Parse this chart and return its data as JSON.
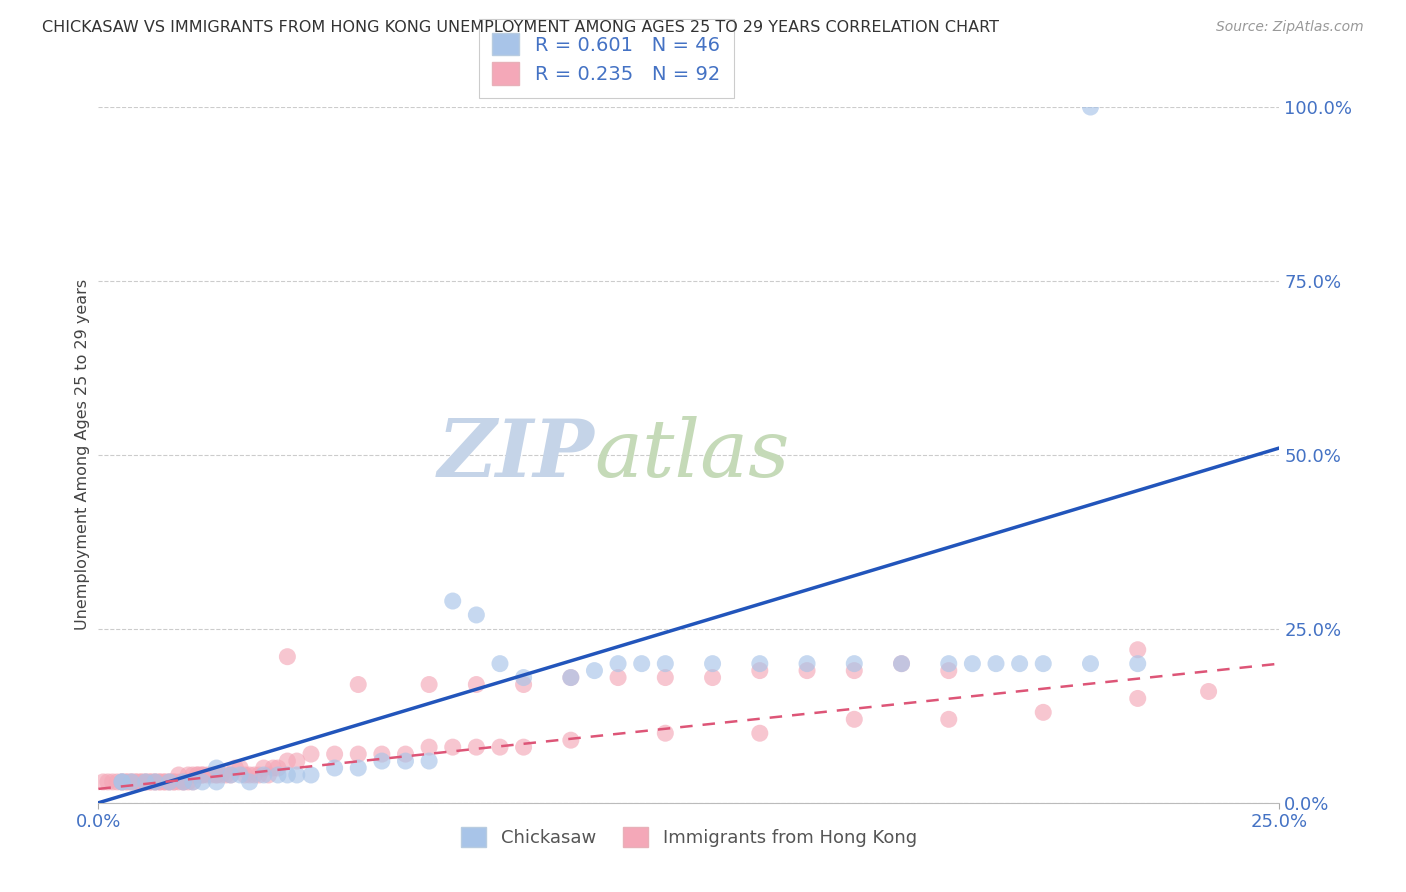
{
  "title": "CHICKASAW VS IMMIGRANTS FROM HONG KONG UNEMPLOYMENT AMONG AGES 25 TO 29 YEARS CORRELATION CHART",
  "source": "Source: ZipAtlas.com",
  "ylabel": "Unemployment Among Ages 25 to 29 years",
  "xlim": [
    0.0,
    0.25
  ],
  "ylim": [
    0.0,
    1.0
  ],
  "legend_r1": "R = 0.601",
  "legend_n1": "N = 46",
  "legend_r2": "R = 0.235",
  "legend_n2": "N = 92",
  "color_chickasaw": "#a8c4e8",
  "color_hk": "#f4a8b8",
  "color_blue_line": "#2255bb",
  "color_pink_line": "#dd5577",
  "color_title": "#333333",
  "color_axis_blue": "#4472c4",
  "watermark_zip_color": "#c0cfe8",
  "watermark_atlas_color": "#c0d8b0",
  "grid_color": "#cccccc",
  "background_color": "#ffffff",
  "legend_label1": "Chickasaw",
  "legend_label2": "Immigrants from Hong Kong",
  "blue_line_x": [
    0.0,
    0.25
  ],
  "blue_line_y": [
    0.0,
    0.51
  ],
  "pink_line_x": [
    0.0,
    0.25
  ],
  "pink_line_y": [
    0.02,
    0.2
  ],
  "chickasaw_x": [
    0.005,
    0.005,
    0.007,
    0.01,
    0.012,
    0.015,
    0.018,
    0.02,
    0.022,
    0.025,
    0.025,
    0.028,
    0.03,
    0.032,
    0.035,
    0.038,
    0.04,
    0.042,
    0.045,
    0.05,
    0.055,
    0.06,
    0.065,
    0.07,
    0.075,
    0.08,
    0.085,
    0.09,
    0.1,
    0.105,
    0.11,
    0.115,
    0.12,
    0.13,
    0.14,
    0.15,
    0.16,
    0.17,
    0.18,
    0.19,
    0.2,
    0.21,
    0.22,
    0.185,
    0.195,
    0.21
  ],
  "chickasaw_y": [
    0.03,
    0.03,
    0.03,
    0.03,
    0.03,
    0.03,
    0.03,
    0.03,
    0.03,
    0.03,
    0.05,
    0.04,
    0.04,
    0.03,
    0.04,
    0.04,
    0.04,
    0.04,
    0.04,
    0.05,
    0.05,
    0.06,
    0.06,
    0.06,
    0.29,
    0.27,
    0.2,
    0.18,
    0.18,
    0.19,
    0.2,
    0.2,
    0.2,
    0.2,
    0.2,
    0.2,
    0.2,
    0.2,
    0.2,
    0.2,
    0.2,
    0.2,
    0.2,
    0.2,
    0.2,
    1.0
  ],
  "hk_x": [
    0.001,
    0.002,
    0.003,
    0.004,
    0.005,
    0.005,
    0.006,
    0.006,
    0.007,
    0.007,
    0.008,
    0.008,
    0.009,
    0.009,
    0.01,
    0.01,
    0.011,
    0.011,
    0.012,
    0.012,
    0.013,
    0.013,
    0.014,
    0.014,
    0.015,
    0.015,
    0.016,
    0.016,
    0.017,
    0.017,
    0.018,
    0.018,
    0.019,
    0.019,
    0.02,
    0.02,
    0.021,
    0.021,
    0.022,
    0.022,
    0.023,
    0.024,
    0.025,
    0.025,
    0.026,
    0.027,
    0.028,
    0.029,
    0.03,
    0.031,
    0.032,
    0.033,
    0.034,
    0.035,
    0.036,
    0.037,
    0.038,
    0.04,
    0.042,
    0.045,
    0.05,
    0.055,
    0.06,
    0.065,
    0.07,
    0.075,
    0.08,
    0.085,
    0.09,
    0.1,
    0.12,
    0.14,
    0.16,
    0.18,
    0.2,
    0.22,
    0.235,
    0.04,
    0.055,
    0.07,
    0.08,
    0.09,
    0.1,
    0.11,
    0.12,
    0.13,
    0.14,
    0.15,
    0.16,
    0.17,
    0.18,
    0.22
  ],
  "hk_y": [
    0.03,
    0.03,
    0.03,
    0.03,
    0.03,
    0.03,
    0.03,
    0.03,
    0.03,
    0.03,
    0.03,
    0.03,
    0.03,
    0.03,
    0.03,
    0.03,
    0.03,
    0.03,
    0.03,
    0.03,
    0.03,
    0.03,
    0.03,
    0.03,
    0.03,
    0.03,
    0.03,
    0.03,
    0.03,
    0.04,
    0.03,
    0.03,
    0.04,
    0.03,
    0.04,
    0.03,
    0.04,
    0.04,
    0.04,
    0.04,
    0.04,
    0.04,
    0.04,
    0.04,
    0.04,
    0.04,
    0.04,
    0.05,
    0.05,
    0.04,
    0.04,
    0.04,
    0.04,
    0.05,
    0.04,
    0.05,
    0.05,
    0.06,
    0.06,
    0.07,
    0.07,
    0.07,
    0.07,
    0.07,
    0.08,
    0.08,
    0.08,
    0.08,
    0.08,
    0.09,
    0.1,
    0.1,
    0.12,
    0.12,
    0.13,
    0.15,
    0.16,
    0.21,
    0.17,
    0.17,
    0.17,
    0.17,
    0.18,
    0.18,
    0.18,
    0.18,
    0.19,
    0.19,
    0.19,
    0.2,
    0.19,
    0.22
  ]
}
